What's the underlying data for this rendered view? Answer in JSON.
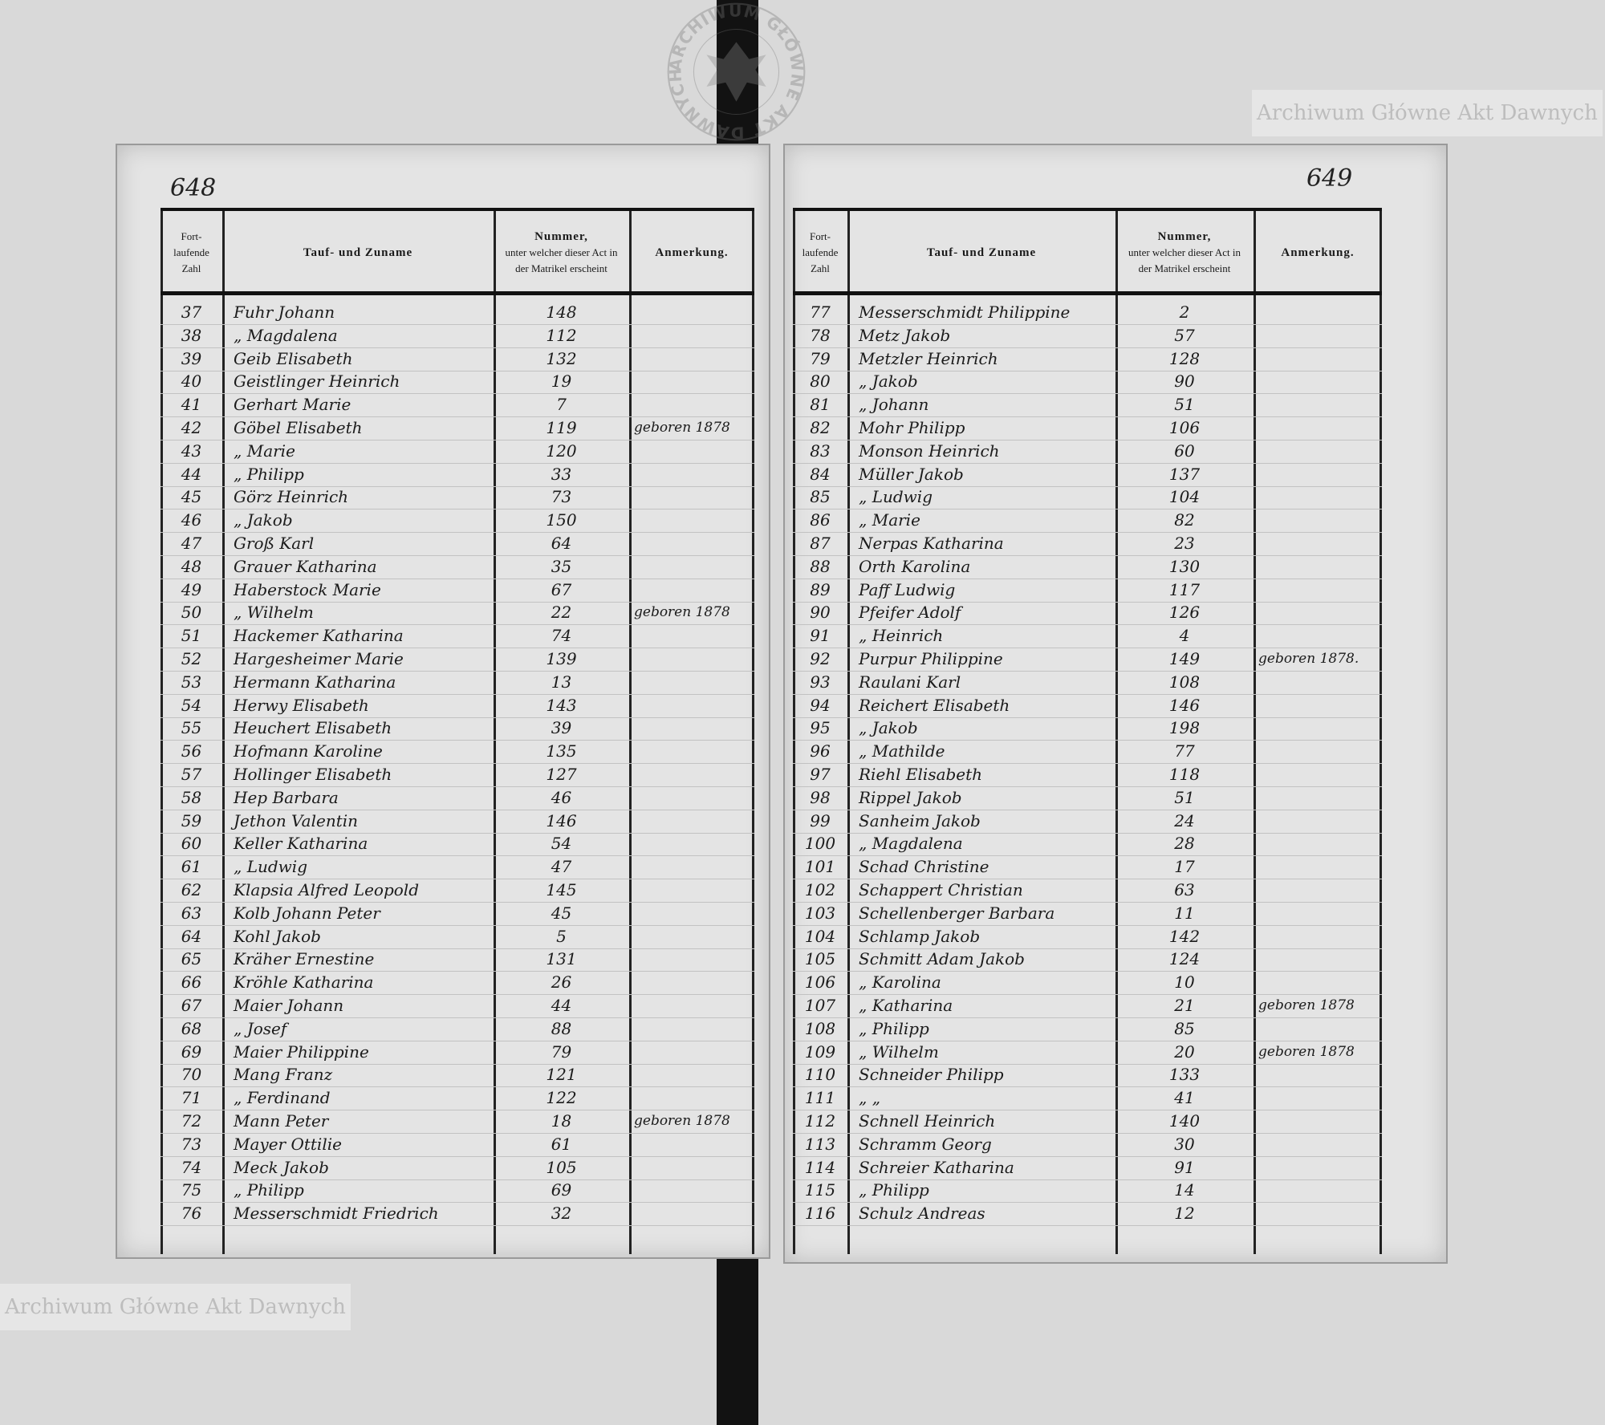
{
  "left_page": {
    "page_number": "648",
    "header": {
      "col1": [
        "Fort-",
        "laufende",
        "Zahl"
      ],
      "col2": "Tauf- und Zuname",
      "col3": [
        "Nummer,",
        "unter welcher dieser Act in",
        "der Matrikel erscheint"
      ],
      "col4": "Anmerkung."
    },
    "rows": [
      {
        "no": "37",
        "name": "Fuhr Johann",
        "num": "148",
        "remark": ""
      },
      {
        "no": "38",
        "name": "„ Magdalena",
        "num": "112",
        "remark": ""
      },
      {
        "no": "39",
        "name": "Geib Elisabeth",
        "num": "132",
        "remark": ""
      },
      {
        "no": "40",
        "name": "Geistlinger Heinrich",
        "num": "19",
        "remark": ""
      },
      {
        "no": "41",
        "name": "Gerhart Marie",
        "num": "7",
        "remark": ""
      },
      {
        "no": "42",
        "name": "Göbel Elisabeth",
        "num": "119",
        "remark": "geboren 1878"
      },
      {
        "no": "43",
        "name": "„ Marie",
        "num": "120",
        "remark": ""
      },
      {
        "no": "44",
        "name": "„ Philipp",
        "num": "33",
        "remark": ""
      },
      {
        "no": "45",
        "name": "Görz Heinrich",
        "num": "73",
        "remark": ""
      },
      {
        "no": "46",
        "name": "„ Jakob",
        "num": "150",
        "remark": ""
      },
      {
        "no": "47",
        "name": "Groß Karl",
        "num": "64",
        "remark": ""
      },
      {
        "no": "48",
        "name": "Grauer Katharina",
        "num": "35",
        "remark": ""
      },
      {
        "no": "49",
        "name": "Haberstock Marie",
        "num": "67",
        "remark": ""
      },
      {
        "no": "50",
        "name": "„ Wilhelm",
        "num": "22",
        "remark": "geboren 1878"
      },
      {
        "no": "51",
        "name": "Hackemer Katharina",
        "num": "74",
        "remark": ""
      },
      {
        "no": "52",
        "name": "Hargesheimer Marie",
        "num": "139",
        "remark": ""
      },
      {
        "no": "53",
        "name": "Hermann Katharina",
        "num": "13",
        "remark": ""
      },
      {
        "no": "54",
        "name": "Herwy Elisabeth",
        "num": "143",
        "remark": ""
      },
      {
        "no": "55",
        "name": "Heuchert Elisabeth",
        "num": "39",
        "remark": ""
      },
      {
        "no": "56",
        "name": "Hofmann Karoline",
        "num": "135",
        "remark": ""
      },
      {
        "no": "57",
        "name": "Hollinger Elisabeth",
        "num": "127",
        "remark": ""
      },
      {
        "no": "58",
        "name": "Hep Barbara",
        "num": "46",
        "remark": ""
      },
      {
        "no": "59",
        "name": "Jethon Valentin",
        "num": "146",
        "remark": ""
      },
      {
        "no": "60",
        "name": "Keller Katharina",
        "num": "54",
        "remark": ""
      },
      {
        "no": "61",
        "name": "„ Ludwig",
        "num": "47",
        "remark": ""
      },
      {
        "no": "62",
        "name": "Klapsia Alfred Leopold",
        "num": "145",
        "remark": ""
      },
      {
        "no": "63",
        "name": "Kolb Johann Peter",
        "num": "45",
        "remark": ""
      },
      {
        "no": "64",
        "name": "Kohl Jakob",
        "num": "5",
        "remark": ""
      },
      {
        "no": "65",
        "name": "Kräher Ernestine",
        "num": "131",
        "remark": ""
      },
      {
        "no": "66",
        "name": "Kröhle Katharina",
        "num": "26",
        "remark": ""
      },
      {
        "no": "67",
        "name": "Maier Johann",
        "num": "44",
        "remark": ""
      },
      {
        "no": "68",
        "name": "„ Josef",
        "num": "88",
        "remark": ""
      },
      {
        "no": "69",
        "name": "Maier Philippine",
        "num": "79",
        "remark": ""
      },
      {
        "no": "70",
        "name": "Mang Franz",
        "num": "121",
        "remark": ""
      },
      {
        "no": "71",
        "name": "„ Ferdinand",
        "num": "122",
        "remark": ""
      },
      {
        "no": "72",
        "name": "Mann Peter",
        "num": "18",
        "remark": "geboren 1878"
      },
      {
        "no": "73",
        "name": "Mayer Ottilie",
        "num": "61",
        "remark": ""
      },
      {
        "no": "74",
        "name": "Meck Jakob",
        "num": "105",
        "remark": ""
      },
      {
        "no": "75",
        "name": "„ Philipp",
        "num": "69",
        "remark": ""
      },
      {
        "no": "76",
        "name": "Messerschmidt Friedrich",
        "num": "32",
        "remark": ""
      }
    ]
  },
  "right_page": {
    "page_number": "649",
    "header": {
      "col1": [
        "Fort-",
        "laufende",
        "Zahl"
      ],
      "col2": "Tauf- und Zuname",
      "col3": [
        "Nummer,",
        "unter welcher dieser Act in",
        "der Matrikel erscheint"
      ],
      "col4": "Anmerkung."
    },
    "rows": [
      {
        "no": "77",
        "name": "Messerschmidt Philippine",
        "num": "2",
        "remark": ""
      },
      {
        "no": "78",
        "name": "Metz Jakob",
        "num": "57",
        "remark": ""
      },
      {
        "no": "79",
        "name": "Metzler Heinrich",
        "num": "128",
        "remark": ""
      },
      {
        "no": "80",
        "name": "„ Jakob",
        "num": "90",
        "remark": ""
      },
      {
        "no": "81",
        "name": "„ Johann",
        "num": "51",
        "remark": ""
      },
      {
        "no": "82",
        "name": "Mohr Philipp",
        "num": "106",
        "remark": ""
      },
      {
        "no": "83",
        "name": "Monson Heinrich",
        "num": "60",
        "remark": ""
      },
      {
        "no": "84",
        "name": "Müller Jakob",
        "num": "137",
        "remark": ""
      },
      {
        "no": "85",
        "name": "„ Ludwig",
        "num": "104",
        "remark": ""
      },
      {
        "no": "86",
        "name": "„ Marie",
        "num": "82",
        "remark": ""
      },
      {
        "no": "87",
        "name": "Nerpas Katharina",
        "num": "23",
        "remark": ""
      },
      {
        "no": "88",
        "name": "Orth Karolina",
        "num": "130",
        "remark": ""
      },
      {
        "no": "89",
        "name": "Paff Ludwig",
        "num": "117",
        "remark": ""
      },
      {
        "no": "90",
        "name": "Pfeifer Adolf",
        "num": "126",
        "remark": ""
      },
      {
        "no": "91",
        "name": "„ Heinrich",
        "num": "4",
        "remark": ""
      },
      {
        "no": "92",
        "name": "Purpur Philippine",
        "num": "149",
        "remark": "geboren 1878."
      },
      {
        "no": "93",
        "name": "Raulani Karl",
        "num": "108",
        "remark": ""
      },
      {
        "no": "94",
        "name": "Reichert Elisabeth",
        "num": "146",
        "remark": ""
      },
      {
        "no": "95",
        "name": "„ Jakob",
        "num": "198",
        "remark": ""
      },
      {
        "no": "96",
        "name": "„ Mathilde",
        "num": "77",
        "remark": ""
      },
      {
        "no": "97",
        "name": "Riehl Elisabeth",
        "num": "118",
        "remark": ""
      },
      {
        "no": "98",
        "name": "Rippel Jakob",
        "num": "51",
        "remark": ""
      },
      {
        "no": "99",
        "name": "Sanheim Jakob",
        "num": "24",
        "remark": ""
      },
      {
        "no": "100",
        "name": "„ Magdalena",
        "num": "28",
        "remark": ""
      },
      {
        "no": "101",
        "name": "Schad Christine",
        "num": "17",
        "remark": ""
      },
      {
        "no": "102",
        "name": "Schappert Christian",
        "num": "63",
        "remark": ""
      },
      {
        "no": "103",
        "name": "Schellenberger Barbara",
        "num": "11",
        "remark": ""
      },
      {
        "no": "104",
        "name": "Schlamp Jakob",
        "num": "142",
        "remark": ""
      },
      {
        "no": "105",
        "name": "Schmitt Adam Jakob",
        "num": "124",
        "remark": ""
      },
      {
        "no": "106",
        "name": "„ Karolina",
        "num": "10",
        "remark": ""
      },
      {
        "no": "107",
        "name": "„ Katharina",
        "num": "21",
        "remark": "geboren 1878"
      },
      {
        "no": "108",
        "name": "„ Philipp",
        "num": "85",
        "remark": ""
      },
      {
        "no": "109",
        "name": "„ Wilhelm",
        "num": "20",
        "remark": "geboren 1878"
      },
      {
        "no": "110",
        "name": "Schneider Philipp",
        "num": "133",
        "remark": ""
      },
      {
        "no": "111",
        "name": "„ „",
        "num": "41",
        "remark": ""
      },
      {
        "no": "112",
        "name": "Schnell Heinrich",
        "num": "140",
        "remark": ""
      },
      {
        "no": "113",
        "name": "Schramm Georg",
        "num": "30",
        "remark": ""
      },
      {
        "no": "114",
        "name": "Schreier Katharina",
        "num": "91",
        "remark": ""
      },
      {
        "no": "115",
        "name": "„ Philipp",
        "num": "14",
        "remark": ""
      },
      {
        "no": "116",
        "name": "Schulz Andreas",
        "num": "12",
        "remark": ""
      }
    ]
  },
  "watermarks": {
    "top_right": "Archiwum Główne Akt Dawnych",
    "bottom_left": "Archiwum Główne Akt Dawnych",
    "stamp": "ARCHIWUM GŁÓWNE AKT DAWNYCH"
  }
}
